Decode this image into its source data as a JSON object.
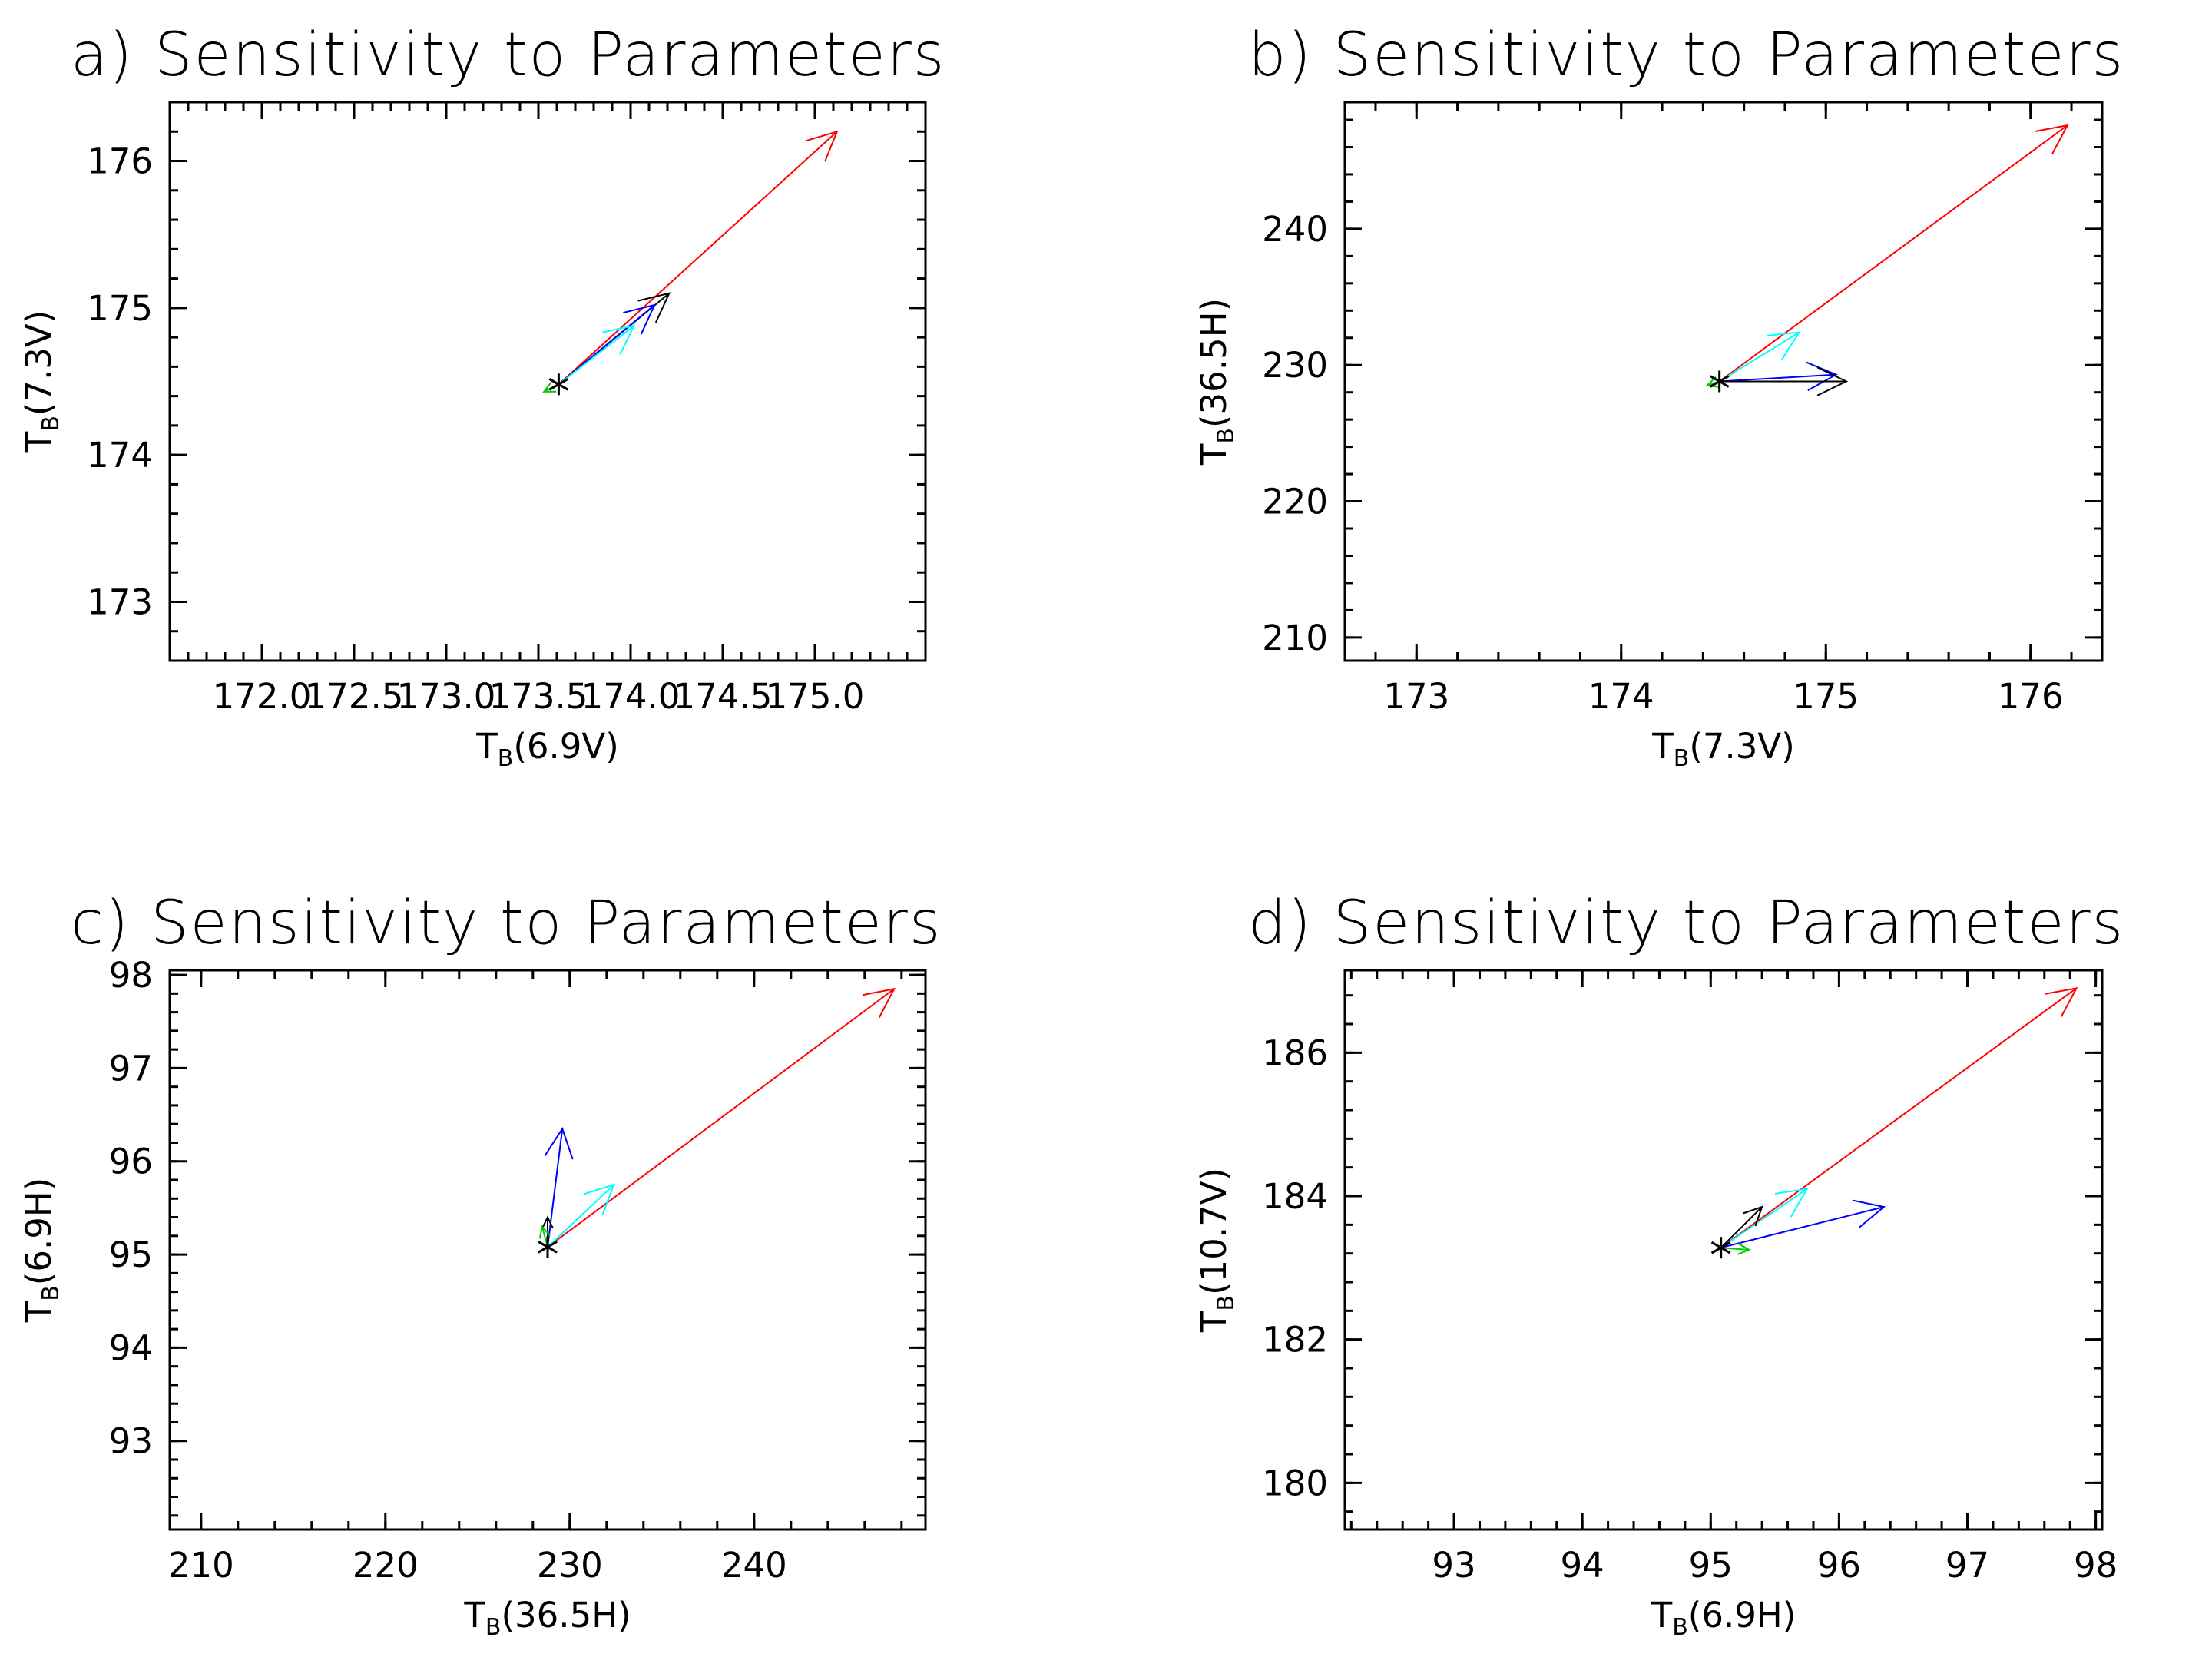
{
  "chart_data": [
    {
      "type": "vector",
      "title": "a) Sensitivity to Parameters",
      "xlabel": {
        "base": "T",
        "sub": "B",
        "suffix": "(6.9V)"
      },
      "ylabel": {
        "base": "T",
        "sub": "B",
        "suffix": "(7.3V)"
      },
      "xlim": [
        171.5,
        175.6
      ],
      "ylim": [
        172.6,
        176.4
      ],
      "xticks": [
        172.0,
        172.5,
        173.0,
        173.5,
        174.0,
        174.5,
        175.0
      ],
      "xtick_labels": [
        "172.0",
        "172.5",
        "173.0",
        "173.5",
        "174.0",
        "174.5",
        "175.0"
      ],
      "yticks": [
        173,
        174,
        175,
        176
      ],
      "ytick_labels": [
        "173",
        "174",
        "175",
        "176"
      ],
      "origin": {
        "x": 173.61,
        "y": 174.48
      },
      "arrows": [
        {
          "color": "#ff0000",
          "x": 175.12,
          "y": 176.2
        },
        {
          "color": "#000000",
          "x": 174.21,
          "y": 175.1
        },
        {
          "color": "#0000ff",
          "x": 174.13,
          "y": 175.02
        },
        {
          "color": "#00ffff",
          "x": 174.02,
          "y": 174.88
        },
        {
          "color": "#00cc00",
          "x": 173.53,
          "y": 174.43
        }
      ]
    },
    {
      "type": "vector",
      "title": "b) Sensitivity to Parameters",
      "xlabel": {
        "base": "T",
        "sub": "B",
        "suffix": "(7.3V)"
      },
      "ylabel": {
        "base": "T",
        "sub": "B",
        "suffix": "(36.5H)"
      },
      "xlim": [
        172.65,
        176.35
      ],
      "ylim": [
        208.3,
        249.3
      ],
      "xticks": [
        173,
        174,
        175,
        176
      ],
      "xtick_labels": [
        "173",
        "174",
        "175",
        "176"
      ],
      "yticks": [
        210,
        220,
        230,
        240
      ],
      "ytick_labels": [
        "210",
        "220",
        "230",
        "240"
      ],
      "origin": {
        "x": 174.48,
        "y": 228.8
      },
      "arrows": [
        {
          "color": "#ff0000",
          "x": 176.18,
          "y": 247.6
        },
        {
          "color": "#00ffff",
          "x": 174.87,
          "y": 232.4
        },
        {
          "color": "#0000ff",
          "x": 175.05,
          "y": 229.3
        },
        {
          "color": "#000000",
          "x": 175.1,
          "y": 228.8
        },
        {
          "color": "#00cc00",
          "x": 174.42,
          "y": 228.5
        }
      ]
    },
    {
      "type": "vector",
      "title": "c) Sensitivity to Parameters",
      "xlabel": {
        "base": "T",
        "sub": "B",
        "suffix": "(36.5H)"
      },
      "ylabel": {
        "base": "T",
        "sub": "B",
        "suffix": "(6.9H)"
      },
      "xlim": [
        208.3,
        249.3
      ],
      "ylim": [
        92.05,
        98.05
      ],
      "xticks": [
        210,
        220,
        230,
        240
      ],
      "xtick_labels": [
        "210",
        "220",
        "230",
        "240"
      ],
      "yticks": [
        93,
        94,
        95,
        96,
        97,
        98
      ],
      "ytick_labels": [
        "93",
        "94",
        "95",
        "96",
        "97",
        "98"
      ],
      "origin": {
        "x": 228.8,
        "y": 95.08
      },
      "arrows": [
        {
          "color": "#ff0000",
          "x": 247.6,
          "y": 97.85
        },
        {
          "color": "#0000ff",
          "x": 229.6,
          "y": 96.35
        },
        {
          "color": "#00ffff",
          "x": 232.4,
          "y": 95.75
        },
        {
          "color": "#000000",
          "x": 228.8,
          "y": 95.4
        },
        {
          "color": "#00cc00",
          "x": 228.5,
          "y": 95.3
        }
      ]
    },
    {
      "type": "vector",
      "title": "d) Sensitivity to Parameters",
      "xlabel": {
        "base": "T",
        "sub": "B",
        "suffix": "(6.9H)"
      },
      "ylabel": {
        "base": "T",
        "sub": "B",
        "suffix": "(10.7V)"
      },
      "xlim": [
        92.15,
        98.05
      ],
      "ylim": [
        179.35,
        187.15
      ],
      "xticks": [
        93,
        94,
        95,
        96,
        97,
        98
      ],
      "xtick_labels": [
        "93",
        "94",
        "95",
        "96",
        "97",
        "98"
      ],
      "yticks": [
        180,
        182,
        184,
        186
      ],
      "ytick_labels": [
        "180",
        "182",
        "184",
        "186"
      ],
      "origin": {
        "x": 95.08,
        "y": 183.28
      },
      "arrows": [
        {
          "color": "#ff0000",
          "x": 97.85,
          "y": 186.9
        },
        {
          "color": "#0000ff",
          "x": 96.35,
          "y": 183.85
        },
        {
          "color": "#00ffff",
          "x": 95.75,
          "y": 184.1
        },
        {
          "color": "#000000",
          "x": 95.4,
          "y": 183.85
        },
        {
          "color": "#00cc00",
          "x": 95.3,
          "y": 183.25
        }
      ]
    }
  ]
}
